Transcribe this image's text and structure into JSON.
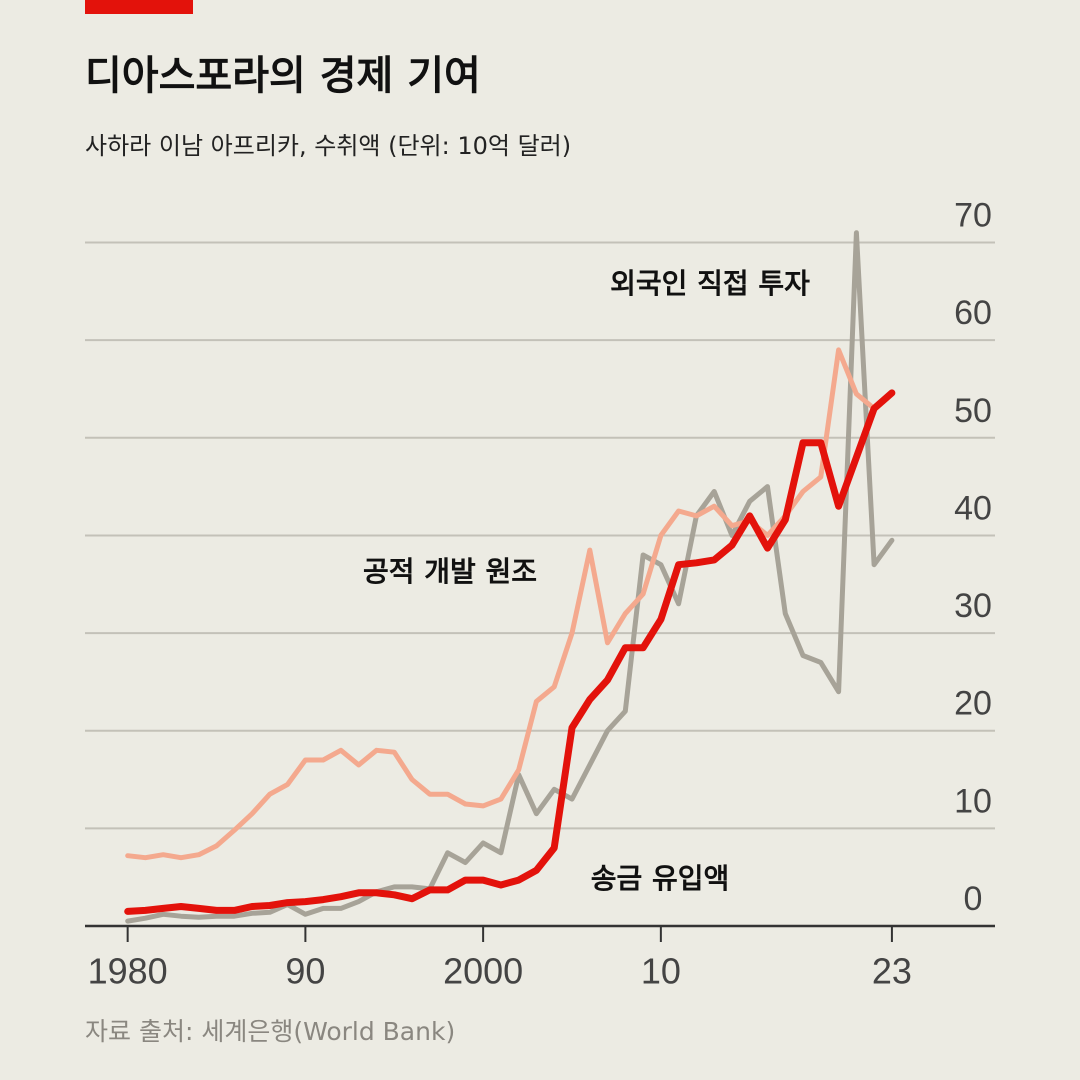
{
  "chart_data": {
    "type": "line",
    "title": "디아스포라의 경제 기여",
    "subtitle": "사하라 이남 아프리카, 수취액 (단위: 10억 달러)",
    "source": "자료 출처: 세계은행(World Bank)",
    "x": [
      1980,
      1981,
      1982,
      1983,
      1984,
      1985,
      1986,
      1987,
      1988,
      1989,
      1990,
      1991,
      1992,
      1993,
      1994,
      1995,
      1996,
      1997,
      1998,
      1999,
      2000,
      2001,
      2002,
      2003,
      2004,
      2005,
      2006,
      2007,
      2008,
      2009,
      2010,
      2011,
      2012,
      2013,
      2014,
      2015,
      2016,
      2017,
      2018,
      2019,
      2020,
      2021,
      2022,
      2023
    ],
    "series": [
      {
        "name": "외국인 직접 투자",
        "color": "#a7a398",
        "values": [
          0.5,
          0.8,
          1.2,
          1.0,
          0.9,
          1.0,
          1.0,
          1.3,
          1.4,
          2.2,
          1.2,
          1.8,
          1.8,
          2.5,
          3.5,
          4.0,
          4.0,
          3.8,
          7.5,
          6.5,
          8.5,
          7.5,
          15.5,
          11.5,
          14,
          13,
          16.5,
          20,
          22,
          38,
          37,
          33,
          42,
          44.5,
          40,
          43.5,
          45,
          32,
          27.7,
          27,
          24,
          71,
          37,
          39.5
        ]
      },
      {
        "name": "공적 개발 원조",
        "color": "#f4a98e",
        "values": [
          7.2,
          7.0,
          7.3,
          7.0,
          7.3,
          8.2,
          9.8,
          11.5,
          13.5,
          14.5,
          17,
          17,
          18,
          16.5,
          18,
          17.8,
          15,
          13.5,
          13.5,
          12.5,
          12.3,
          13,
          16,
          23,
          24.5,
          30,
          38.5,
          29,
          32,
          34,
          40,
          42.5,
          42,
          43,
          41,
          41.5,
          40,
          42,
          44.5,
          46,
          59,
          54.5,
          53,
          null
        ]
      },
      {
        "name": "송금 유입액",
        "color": "#e3120b",
        "values": [
          1.5,
          1.6,
          1.8,
          2.0,
          1.8,
          1.6,
          1.6,
          2.0,
          2.1,
          2.4,
          2.5,
          2.7,
          3.0,
          3.4,
          3.4,
          3.2,
          2.8,
          3.7,
          3.7,
          4.7,
          4.7,
          4.2,
          4.7,
          5.7,
          8.0,
          20.3,
          23.2,
          25.2,
          28.5,
          28.5,
          31.4,
          37,
          37.2,
          37.5,
          39,
          42,
          38.7,
          41.6,
          49.5,
          49.5,
          43,
          48,
          53,
          54.6
        ]
      }
    ],
    "xlim": [
      1977.6,
      2028.8
    ],
    "xticks": [
      1980,
      {
        "value": 1990,
        "label": "90"
      },
      2000,
      {
        "value": 2010,
        "label": "10"
      },
      {
        "value": 2023,
        "label": "23"
      }
    ],
    "ylim": [
      0,
      72
    ],
    "yticks": [
      0,
      10,
      20,
      30,
      40,
      50,
      60,
      70
    ],
    "grid": true
  }
}
